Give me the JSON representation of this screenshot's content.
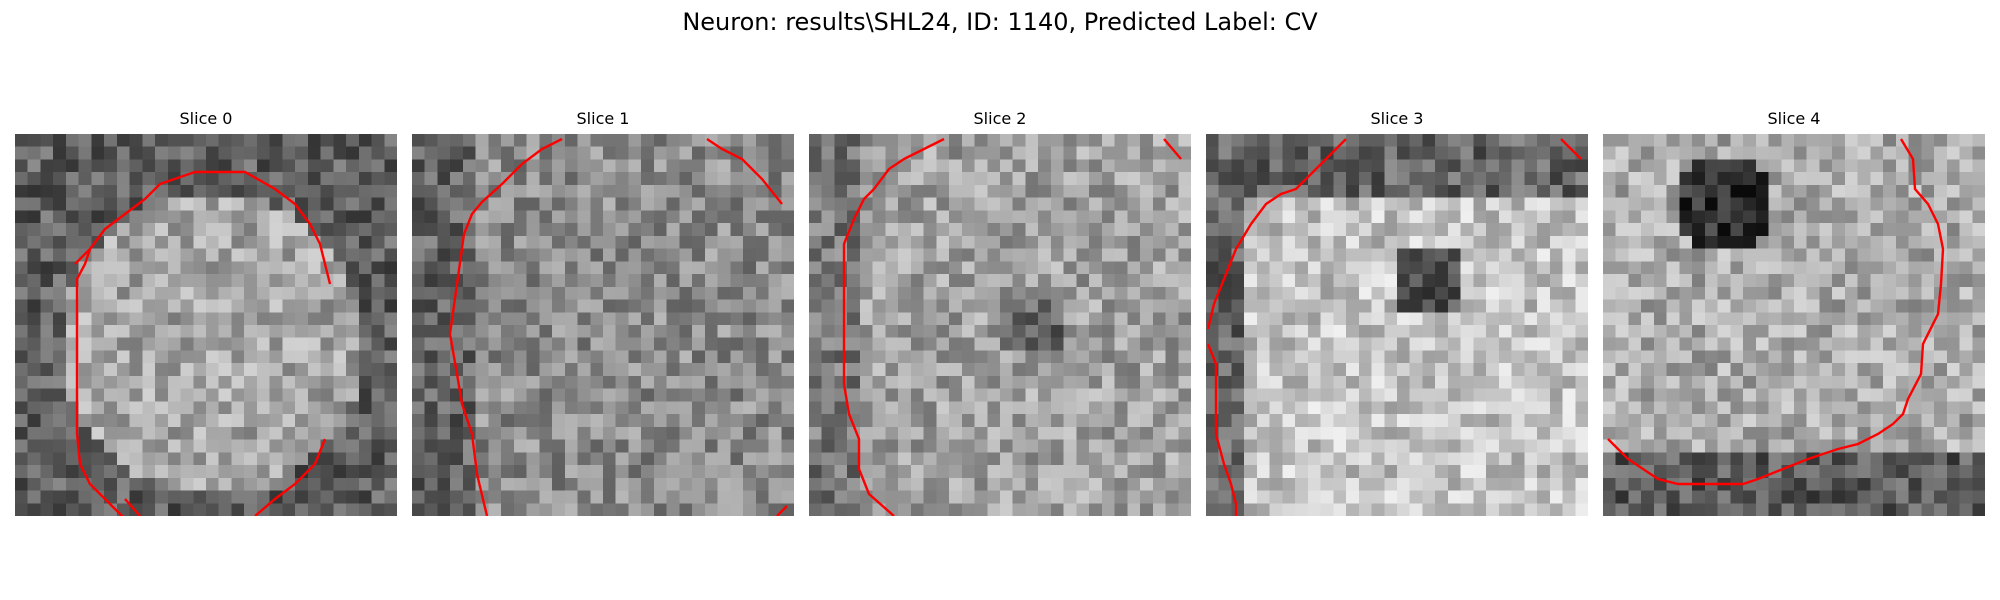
{
  "figure": {
    "title": "Neuron: results\\SHL24, ID: 1140, Predicted Label: CV",
    "contour_color": "#ff0000",
    "colormap": "gray",
    "slices": [
      {
        "label": "Slice 0"
      },
      {
        "label": "Slice 1"
      },
      {
        "label": "Slice 2"
      },
      {
        "label": "Slice 3"
      },
      {
        "label": "Slice 4"
      }
    ]
  }
}
